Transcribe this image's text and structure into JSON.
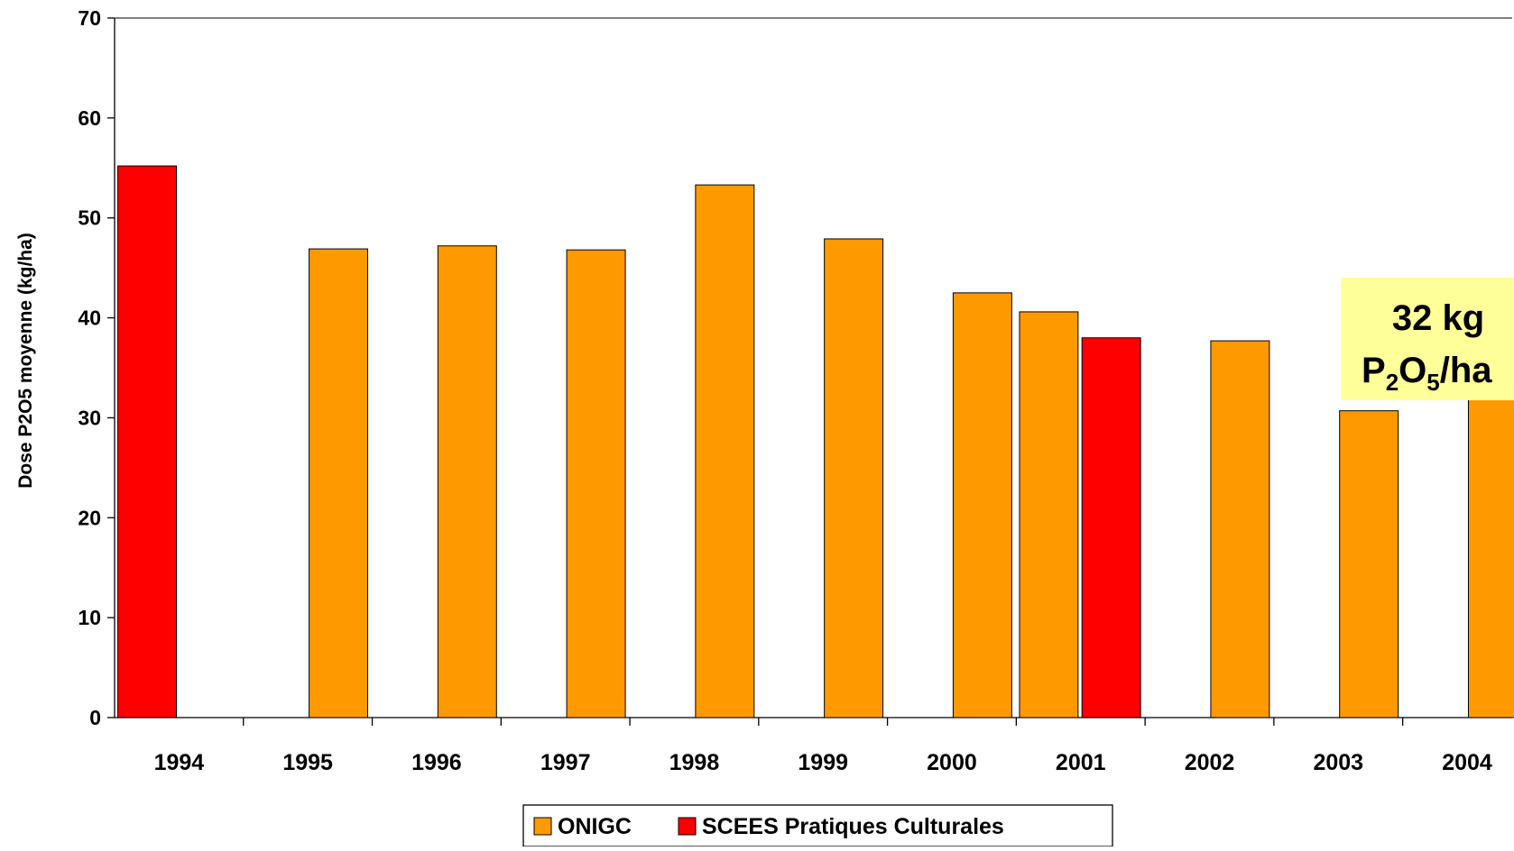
{
  "chart_data": {
    "type": "bar",
    "categories": [
      "1994",
      "1995",
      "1996",
      "1997",
      "1998",
      "1999",
      "2000",
      "2001",
      "2002",
      "2003",
      "2004"
    ],
    "series": [
      {
        "name": "SCEES Pratiques Culturales",
        "color": "#ff0000",
        "values": [
          55.2,
          null,
          null,
          null,
          null,
          null,
          null,
          38.0,
          null,
          null,
          null
        ]
      },
      {
        "name": "ONIGC",
        "color": "#ff9900",
        "values": [
          null,
          46.9,
          47.2,
          46.8,
          53.3,
          47.9,
          42.5,
          40.6,
          37.7,
          30.7,
          32.0
        ]
      }
    ],
    "ylabel": "Dose P2O5 moyenne (kg/ha)",
    "xlabel": "",
    "ylim": [
      0,
      70
    ],
    "yticks": [
      0,
      10,
      20,
      30,
      40,
      50,
      60,
      70
    ],
    "grid": false,
    "legend_position": "bottom",
    "annotation": {
      "line1": "32 kg",
      "line2_parts": [
        "P",
        "2",
        "O",
        "5",
        "/ha"
      ],
      "background_color": "#ffff99"
    }
  }
}
